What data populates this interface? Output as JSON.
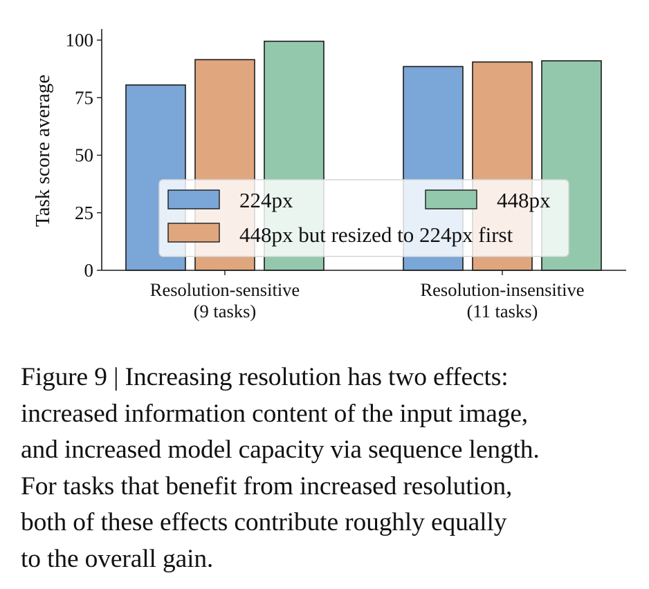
{
  "chart_data": {
    "type": "bar",
    "ylabel": "Task score average",
    "ylim": [
      0,
      100
    ],
    "yticks": [
      0,
      25,
      50,
      75,
      100
    ],
    "grid": false,
    "legend_placement": "lower-center",
    "categories": [
      [
        "Resolution-sensitive",
        "(9 tasks)"
      ],
      [
        "Resolution-insensitive",
        "(11 tasks)"
      ]
    ],
    "series": [
      {
        "name": "224px",
        "color": "#7aa6d8",
        "values": [
          80.5,
          88.5
        ]
      },
      {
        "name": "448px but resized to 224px first",
        "color": "#e0a67e",
        "values": [
          91.5,
          90.5
        ]
      },
      {
        "name": "448px",
        "color": "#93c8ad",
        "values": [
          99.5,
          91
        ]
      }
    ],
    "legend_order": [
      0,
      2,
      1
    ]
  },
  "caption": {
    "lines": [
      "Figure 9 | Increasing resolution has two effects:",
      "increased information content of the input image,",
      "and increased model capacity via sequence length.",
      "For tasks that benefit from increased resolution,",
      "both of these effects contribute roughly equally",
      "to the overall gain."
    ]
  }
}
